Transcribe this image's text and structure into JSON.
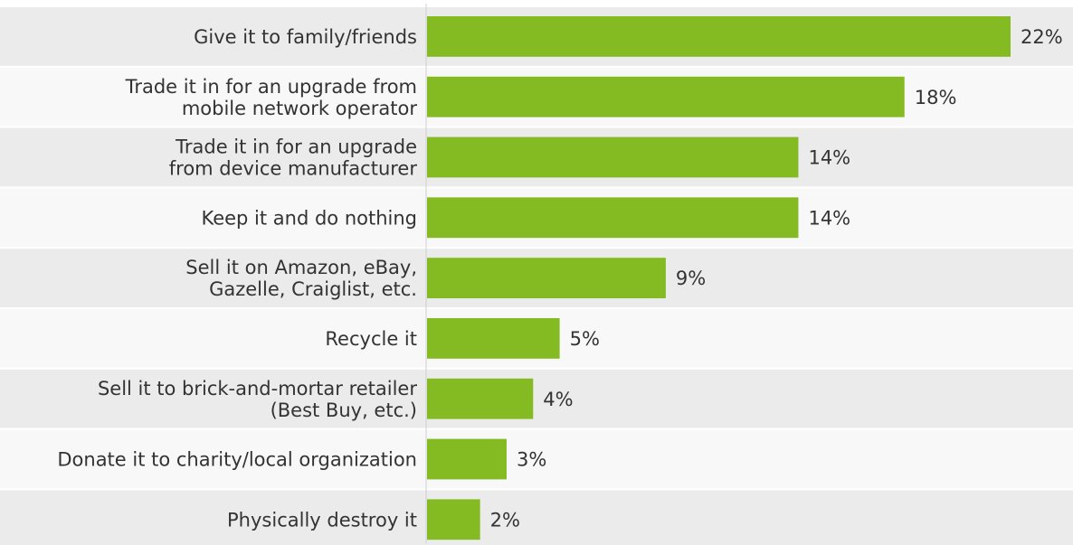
{
  "chart_data": {
    "type": "bar",
    "orientation": "horizontal",
    "categories": [
      [
        "Give it to family/friends"
      ],
      [
        "Trade it in for an upgrade from",
        "mobile network operator"
      ],
      [
        "Trade it in for an upgrade",
        "from device manufacturer"
      ],
      [
        "Keep it and do nothing"
      ],
      [
        "Sell it on Amazon, eBay,",
        "Gazelle, Craiglist, etc."
      ],
      [
        "Recycle it"
      ],
      [
        "Sell it to brick-and-mortar retailer",
        "(Best Buy, etc.)"
      ],
      [
        "Donate it to charity/local organization"
      ],
      [
        "Physically destroy it"
      ]
    ],
    "values": [
      22,
      18,
      14,
      14,
      9,
      5,
      4,
      3,
      2
    ],
    "value_labels": [
      "22%",
      "18%",
      "14%",
      "14%",
      "9%",
      "5%",
      "4%",
      "3%",
      "2%"
    ],
    "unit": "%",
    "xlim": [
      0,
      22
    ],
    "grid": false,
    "colors": {
      "bar": "#84ba22",
      "row_odd": "#ebebeb",
      "row_even": "#f8f8f8",
      "label_text": "#333333",
      "axis_line": "#cfcfcf"
    }
  }
}
